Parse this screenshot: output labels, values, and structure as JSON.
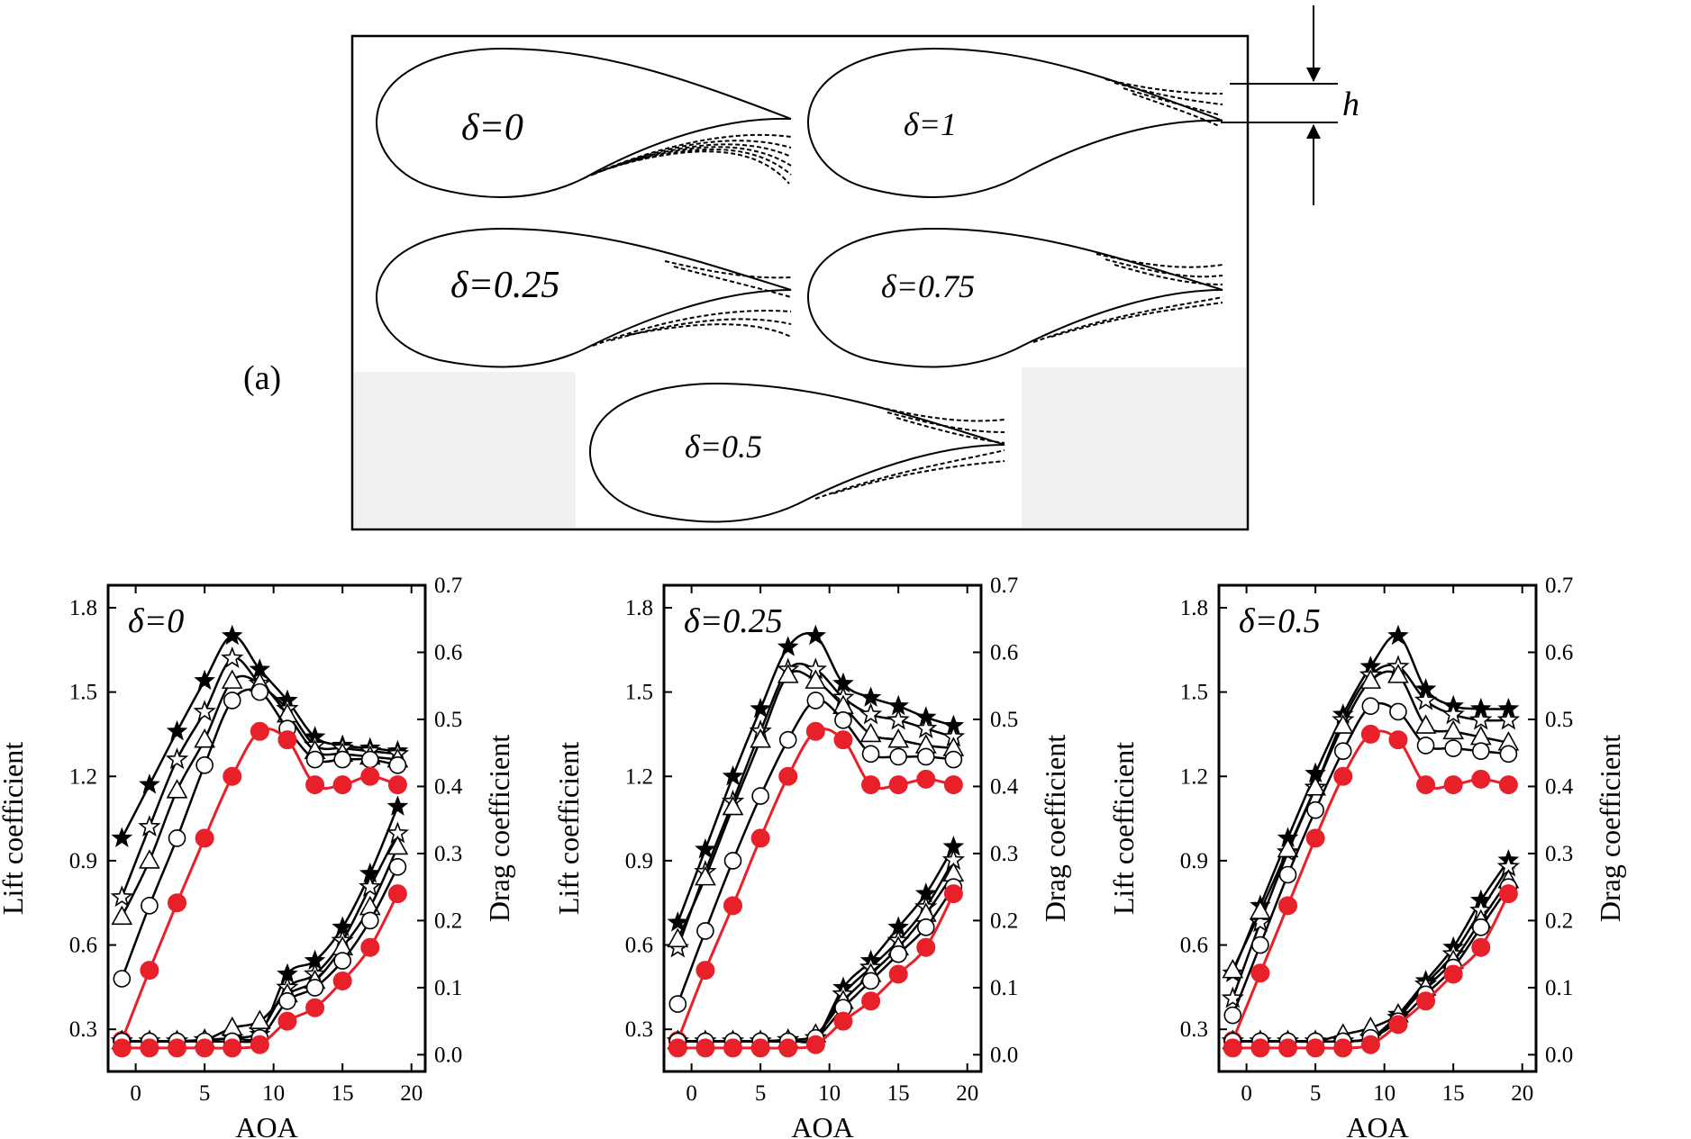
{
  "figure": {
    "part_label": "(a)",
    "dimension_label": "h",
    "foil_labels": [
      "δ=0",
      "δ=1",
      "δ=0.25",
      "δ=0.75",
      "δ=0.5"
    ]
  },
  "colors": {
    "baseline": "#e8202a",
    "series": "#000000"
  },
  "chart_data": [
    {
      "type": "line",
      "panel_label": "δ=0",
      "xlabel": "AOA",
      "ylabel_left": "Lift coefficient",
      "ylabel_right": "Drag coefficient",
      "xlim": [
        -2,
        21
      ],
      "ylim_left": [
        0.15,
        1.88
      ],
      "ylim_right": [
        -0.025,
        0.7
      ],
      "xticks": [
        0,
        5,
        10,
        15,
        20
      ],
      "yticks_left": [
        "0.3",
        "0.6",
        "0.9",
        "1.2",
        "1.5",
        "1.8"
      ],
      "yticks_right": [
        "0.0",
        "0.1",
        "0.2",
        "0.3",
        "0.4",
        "0.5",
        "0.6",
        "0.7"
      ],
      "x": [
        -1,
        1,
        3,
        5,
        7,
        9,
        11,
        13,
        15,
        17,
        19
      ],
      "lift": [
        {
          "marker": "filled-star",
          "values": [
            0.98,
            1.17,
            1.36,
            1.54,
            1.7,
            1.58,
            1.47,
            1.34,
            1.31,
            1.3,
            1.29
          ]
        },
        {
          "marker": "open-star",
          "values": [
            0.77,
            1.02,
            1.26,
            1.43,
            1.62,
            1.53,
            1.44,
            1.31,
            1.3,
            1.29,
            1.28
          ]
        },
        {
          "marker": "open-triangle",
          "values": [
            0.7,
            0.9,
            1.15,
            1.33,
            1.54,
            1.53,
            1.42,
            1.29,
            1.28,
            1.27,
            1.26
          ]
        },
        {
          "marker": "open-circle",
          "values": [
            0.48,
            0.74,
            0.98,
            1.24,
            1.47,
            1.5,
            1.37,
            1.26,
            1.26,
            1.26,
            1.24
          ]
        },
        {
          "marker": "red-circle",
          "values": [
            0.26,
            0.51,
            0.75,
            0.98,
            1.2,
            1.36,
            1.33,
            1.17,
            1.17,
            1.2,
            1.17
          ]
        }
      ],
      "drag": [
        {
          "marker": "filled-star",
          "values": [
            0.02,
            0.02,
            0.02,
            0.022,
            0.025,
            0.03,
            0.12,
            0.14,
            0.19,
            0.27,
            0.37
          ]
        },
        {
          "marker": "open-star",
          "values": [
            0.02,
            0.02,
            0.02,
            0.022,
            0.025,
            0.035,
            0.1,
            0.12,
            0.17,
            0.25,
            0.33
          ]
        },
        {
          "marker": "open-triangle",
          "values": [
            0.02,
            0.02,
            0.02,
            0.022,
            0.04,
            0.05,
            0.09,
            0.11,
            0.16,
            0.22,
            0.31
          ]
        },
        {
          "marker": "open-circle",
          "values": [
            0.02,
            0.02,
            0.02,
            0.02,
            0.02,
            0.025,
            0.08,
            0.1,
            0.14,
            0.2,
            0.28
          ]
        },
        {
          "marker": "red-circle",
          "values": [
            0.01,
            0.01,
            0.01,
            0.01,
            0.01,
            0.015,
            0.05,
            0.07,
            0.11,
            0.16,
            0.24
          ]
        }
      ]
    },
    {
      "type": "line",
      "panel_label": "δ=0.25",
      "xlabel": "AOA",
      "ylabel_left": "Lift coefficient",
      "ylabel_right": "Drag coefficient",
      "xlim": [
        -2,
        21
      ],
      "ylim_left": [
        0.15,
        1.88
      ],
      "ylim_right": [
        -0.025,
        0.7
      ],
      "xticks": [
        0,
        5,
        10,
        15,
        20
      ],
      "yticks_left": [
        "0.3",
        "0.6",
        "0.9",
        "1.2",
        "1.5",
        "1.8"
      ],
      "yticks_right": [
        "0.0",
        "0.1",
        "0.2",
        "0.3",
        "0.4",
        "0.5",
        "0.6",
        "0.7"
      ],
      "x": [
        -1,
        1,
        3,
        5,
        7,
        9,
        11,
        13,
        15,
        17,
        19
      ],
      "lift": [
        {
          "marker": "filled-star",
          "values": [
            0.68,
            0.94,
            1.2,
            1.44,
            1.66,
            1.7,
            1.53,
            1.48,
            1.45,
            1.41,
            1.38
          ]
        },
        {
          "marker": "open-star",
          "values": [
            0.59,
            0.86,
            1.11,
            1.36,
            1.58,
            1.58,
            1.48,
            1.42,
            1.4,
            1.37,
            1.34
          ]
        },
        {
          "marker": "open-triangle",
          "values": [
            0.62,
            0.84,
            1.09,
            1.33,
            1.56,
            1.54,
            1.45,
            1.35,
            1.33,
            1.31,
            1.3
          ]
        },
        {
          "marker": "open-circle",
          "values": [
            0.39,
            0.65,
            0.9,
            1.13,
            1.33,
            1.47,
            1.4,
            1.28,
            1.27,
            1.27,
            1.26
          ]
        },
        {
          "marker": "red-circle",
          "values": [
            0.26,
            0.51,
            0.74,
            0.98,
            1.2,
            1.36,
            1.33,
            1.17,
            1.17,
            1.19,
            1.17
          ]
        }
      ],
      "drag": [
        {
          "marker": "filled-star",
          "values": [
            0.02,
            0.02,
            0.02,
            0.02,
            0.022,
            0.025,
            0.1,
            0.14,
            0.19,
            0.24,
            0.31
          ]
        },
        {
          "marker": "open-star",
          "values": [
            0.02,
            0.02,
            0.02,
            0.02,
            0.022,
            0.025,
            0.09,
            0.13,
            0.17,
            0.22,
            0.29
          ]
        },
        {
          "marker": "open-triangle",
          "values": [
            0.02,
            0.02,
            0.02,
            0.02,
            0.022,
            0.03,
            0.08,
            0.12,
            0.16,
            0.21,
            0.27
          ]
        },
        {
          "marker": "open-circle",
          "values": [
            0.02,
            0.02,
            0.02,
            0.02,
            0.02,
            0.025,
            0.07,
            0.11,
            0.15,
            0.19,
            0.25
          ]
        },
        {
          "marker": "red-circle",
          "values": [
            0.01,
            0.01,
            0.01,
            0.01,
            0.01,
            0.015,
            0.05,
            0.08,
            0.12,
            0.16,
            0.24
          ]
        }
      ]
    },
    {
      "type": "line",
      "panel_label": "δ=0.5",
      "xlabel": "AOA",
      "ylabel_left": "Lift coefficient",
      "ylabel_right": "Drag coefficient",
      "xlim": [
        -2,
        21
      ],
      "ylim_left": [
        0.15,
        1.88
      ],
      "ylim_right": [
        -0.025,
        0.7
      ],
      "xticks": [
        0,
        5,
        10,
        15,
        20
      ],
      "yticks_left": [
        "0.3",
        "0.6",
        "0.9",
        "1.2",
        "1.5",
        "1.8"
      ],
      "yticks_right": [
        "0.0",
        "0.1",
        "0.2",
        "0.3",
        "0.4",
        "0.5",
        "0.6",
        "0.7"
      ],
      "x": [
        -1,
        1,
        3,
        5,
        7,
        9,
        11,
        13,
        15,
        17,
        19
      ],
      "lift": [
        {
          "marker": "filled-star",
          "values": [
            0.5,
            0.74,
            0.98,
            1.21,
            1.42,
            1.59,
            1.7,
            1.51,
            1.45,
            1.44,
            1.44
          ]
        },
        {
          "marker": "open-star",
          "values": [
            0.41,
            0.68,
            0.93,
            1.16,
            1.4,
            1.56,
            1.59,
            1.47,
            1.42,
            1.4,
            1.4
          ]
        },
        {
          "marker": "open-triangle",
          "values": [
            0.51,
            0.72,
            0.94,
            1.16,
            1.38,
            1.54,
            1.56,
            1.38,
            1.36,
            1.34,
            1.32
          ]
        },
        {
          "marker": "open-circle",
          "values": [
            0.35,
            0.6,
            0.85,
            1.08,
            1.29,
            1.45,
            1.43,
            1.31,
            1.3,
            1.29,
            1.28
          ]
        },
        {
          "marker": "red-circle",
          "values": [
            0.26,
            0.5,
            0.74,
            0.98,
            1.2,
            1.35,
            1.33,
            1.17,
            1.17,
            1.19,
            1.17
          ]
        }
      ],
      "drag": [
        {
          "marker": "filled-star",
          "values": [
            0.02,
            0.02,
            0.02,
            0.02,
            0.02,
            0.025,
            0.06,
            0.11,
            0.16,
            0.23,
            0.29
          ]
        },
        {
          "marker": "open-star",
          "values": [
            0.02,
            0.02,
            0.02,
            0.02,
            0.02,
            0.025,
            0.055,
            0.105,
            0.15,
            0.215,
            0.28
          ]
        },
        {
          "marker": "open-triangle",
          "values": [
            0.02,
            0.02,
            0.02,
            0.02,
            0.03,
            0.04,
            0.06,
            0.1,
            0.14,
            0.2,
            0.26
          ]
        },
        {
          "marker": "open-circle",
          "values": [
            0.02,
            0.02,
            0.02,
            0.02,
            0.02,
            0.025,
            0.05,
            0.09,
            0.13,
            0.19,
            0.25
          ]
        },
        {
          "marker": "red-circle",
          "values": [
            0.01,
            0.01,
            0.01,
            0.01,
            0.01,
            0.015,
            0.045,
            0.08,
            0.12,
            0.16,
            0.24
          ]
        }
      ]
    }
  ]
}
